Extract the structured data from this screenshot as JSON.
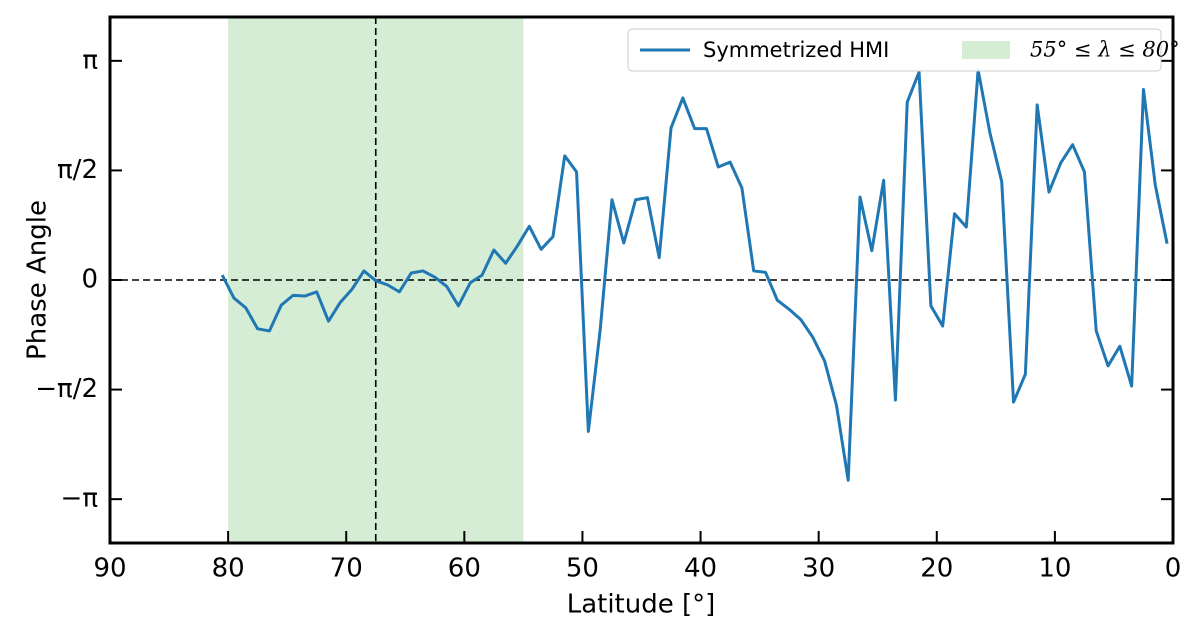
{
  "chart_data": {
    "type": "line",
    "x_label": "Latitude [°]",
    "y_label": "Phase Angle",
    "x": [
      80.5,
      79.5,
      78.5,
      77.5,
      76.5,
      75.5,
      74.5,
      73.5,
      72.5,
      71.5,
      70.5,
      69.5,
      68.5,
      67.5,
      66.5,
      65.5,
      64.5,
      63.5,
      62.5,
      61.5,
      60.5,
      59.5,
      58.5,
      57.5,
      56.5,
      55.5,
      54.5,
      53.5,
      52.5,
      51.5,
      50.5,
      49.5,
      48.5,
      47.5,
      46.5,
      45.5,
      44.5,
      43.5,
      42.5,
      41.5,
      40.5,
      39.5,
      38.5,
      37.5,
      36.5,
      35.5,
      34.5,
      33.5,
      32.5,
      31.5,
      30.5,
      29.5,
      28.5,
      27.5,
      26.5,
      25.5,
      24.5,
      23.5,
      22.5,
      21.5,
      20.5,
      19.5,
      18.5,
      17.5,
      16.5,
      15.5,
      14.5,
      13.5,
      12.5,
      11.5,
      10.5,
      9.5,
      8.5,
      7.5,
      6.5,
      5.5,
      4.5,
      3.5,
      2.5,
      1.5,
      0.5
    ],
    "series": [
      {
        "name": "Symmetrized HMI",
        "color": "#1f77b4",
        "values": [
          0.07,
          -0.26,
          -0.4,
          -0.7,
          -0.73,
          -0.36,
          -0.22,
          -0.23,
          -0.17,
          -0.59,
          -0.32,
          -0.13,
          0.13,
          -0.01,
          -0.07,
          -0.17,
          0.1,
          0.13,
          0.04,
          -0.09,
          -0.37,
          -0.04,
          0.07,
          0.43,
          0.24,
          0.49,
          0.77,
          0.44,
          0.62,
          1.78,
          1.55,
          -2.17,
          -0.72,
          1.15,
          0.53,
          1.15,
          1.18,
          0.32,
          2.18,
          2.61,
          2.17,
          2.17,
          1.62,
          1.69,
          1.32,
          0.13,
          0.11,
          -0.29,
          -0.42,
          -0.57,
          -0.82,
          -1.16,
          -1.79,
          -2.87,
          1.19,
          0.42,
          1.43,
          -1.72,
          2.55,
          2.98,
          -0.37,
          -0.66,
          0.95,
          0.76,
          3.01,
          2.11,
          1.41,
          -1.75,
          -1.35,
          2.51,
          1.26,
          1.68,
          1.94,
          1.55,
          -0.73,
          -1.23,
          -0.95,
          -1.52,
          2.73,
          1.36,
          0.52
        ]
      }
    ],
    "shade": {
      "name": "55° ≤ λ ≤ 80°",
      "color": "#d4edd4",
      "xlim": [
        55,
        80
      ]
    },
    "vline": 67.5,
    "hline": 0,
    "xlim": [
      90,
      0
    ],
    "ylim": [
      -3.77,
      3.77
    ],
    "xticks": [
      90,
      80,
      70,
      60,
      50,
      40,
      30,
      20,
      10,
      0
    ],
    "yticks": [
      {
        "value": -3.14159,
        "label": "−π"
      },
      {
        "value": -1.5708,
        "label": "−π/2"
      },
      0,
      {
        "value": 1.5708,
        "label": "π/2"
      },
      {
        "value": 3.14159,
        "label": "π"
      }
    ],
    "legend": "upper right"
  }
}
